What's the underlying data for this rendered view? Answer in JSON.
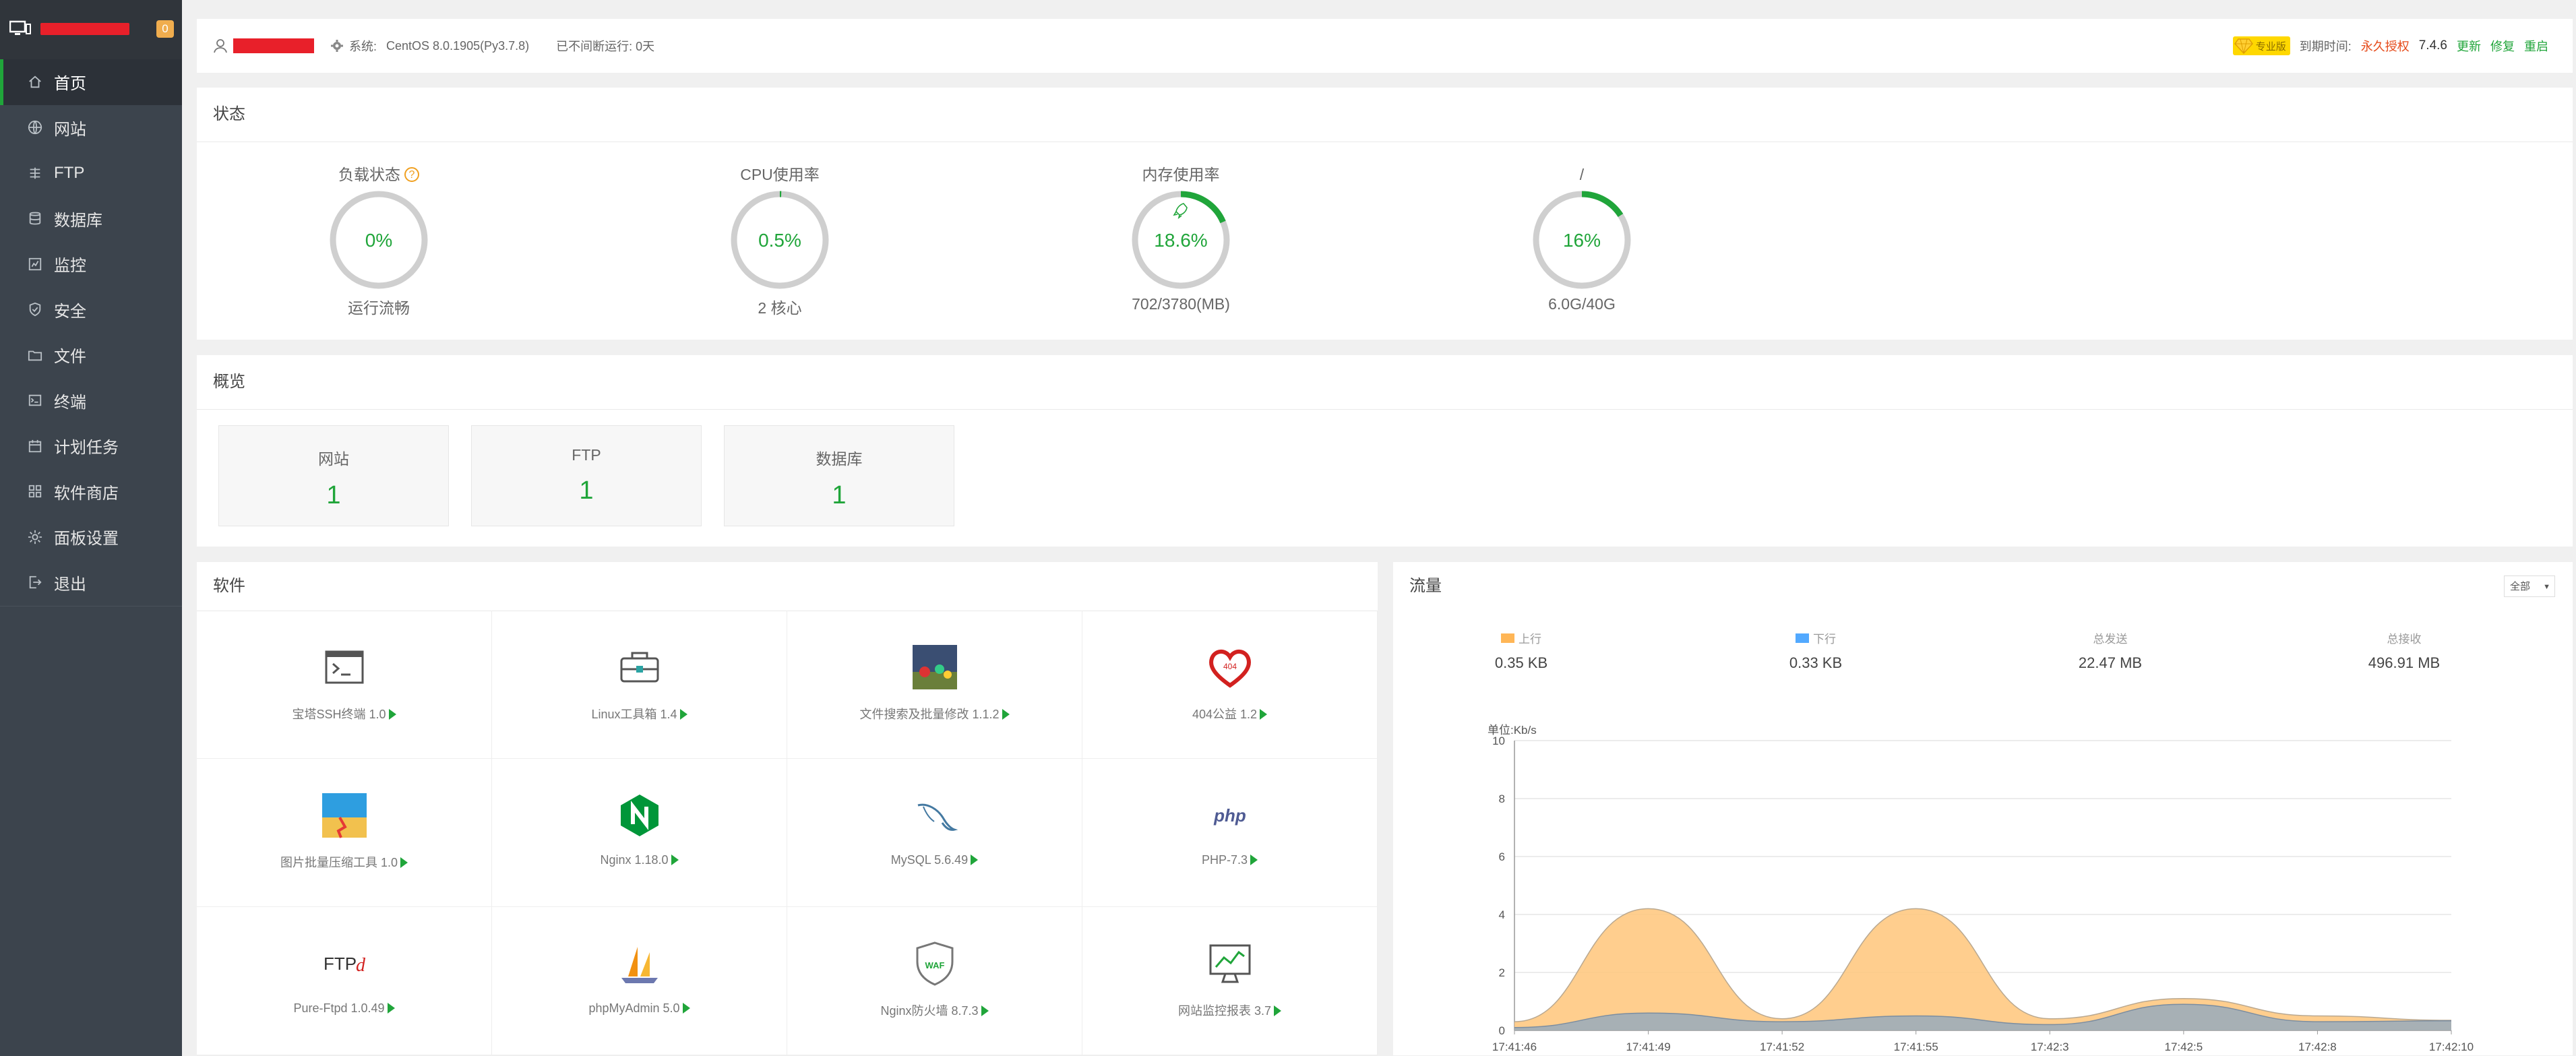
{
  "sidebar": {
    "brand_name": "redacted",
    "badge": "0",
    "items": [
      {
        "label": "首页",
        "icon": "home-icon",
        "active": true
      },
      {
        "label": "网站",
        "icon": "globe-icon"
      },
      {
        "label": "FTP",
        "icon": "ftp-icon"
      },
      {
        "label": "数据库",
        "icon": "database-icon"
      },
      {
        "label": "监控",
        "icon": "monitor-icon"
      },
      {
        "label": "安全",
        "icon": "shield-icon"
      },
      {
        "label": "文件",
        "icon": "folder-icon"
      },
      {
        "label": "终端",
        "icon": "terminal-icon"
      },
      {
        "label": "计划任务",
        "icon": "calendar-icon"
      },
      {
        "label": "软件商店",
        "icon": "grid-icon"
      },
      {
        "label": "面板设置",
        "icon": "gear-icon"
      },
      {
        "label": "退出",
        "icon": "logout-icon"
      }
    ]
  },
  "topbar": {
    "username": "redacted",
    "system_label": "系统:",
    "system_value": "CentOS 8.0.1905(Py3.7.8)",
    "uptime_label": "已不间断运行: 0天",
    "pro_label": "专业版",
    "expire_label": "到期时间:",
    "expire_value": "永久授权",
    "version": "7.4.6",
    "update": "更新",
    "repair": "修复",
    "restart": "重启"
  },
  "status": {
    "title": "状态",
    "gauges": [
      {
        "title": "负载状态",
        "value": "0%",
        "percent": 0,
        "sub": "运行流畅",
        "help": true
      },
      {
        "title": "CPU使用率",
        "value": "0.5%",
        "percent": 0.5,
        "sub": "2 核心"
      },
      {
        "title": "内存使用率",
        "value": "18.6%",
        "percent": 18.6,
        "sub": "702/3780(MB)",
        "rocket": true
      },
      {
        "title": "/",
        "value": "16%",
        "percent": 16,
        "sub": "6.0G/40G"
      }
    ]
  },
  "overview": {
    "title": "概览",
    "cards": [
      {
        "name": "网站",
        "count": "1"
      },
      {
        "name": "FTP",
        "count": "1"
      },
      {
        "name": "数据库",
        "count": "1"
      }
    ]
  },
  "software": {
    "title": "软件",
    "items": [
      {
        "label": "宝塔SSH终端 1.0",
        "icon": "terminal-app-icon"
      },
      {
        "label": "Linux工具箱 1.4",
        "icon": "toolbox-icon"
      },
      {
        "label": "文件搜索及批量修改 1.1.2",
        "icon": "file-search-icon"
      },
      {
        "label": "404公益 1.2",
        "icon": "heart-404-icon"
      },
      {
        "label": "图片批量压缩工具 1.0",
        "icon": "image-compress-icon"
      },
      {
        "label": "Nginx 1.18.0",
        "icon": "nginx-icon"
      },
      {
        "label": "MySQL 5.6.49",
        "icon": "mysql-icon"
      },
      {
        "label": "PHP-7.3",
        "icon": "php-icon"
      },
      {
        "label": "Pure-Ftpd 1.0.49",
        "icon": "ftpd-icon"
      },
      {
        "label": "phpMyAdmin 5.0",
        "icon": "phpmyadmin-icon"
      },
      {
        "label": "Nginx防火墙 8.7.3",
        "icon": "waf-icon"
      },
      {
        "label": "网站监控报表 3.7",
        "icon": "site-monitor-icon"
      }
    ]
  },
  "traffic": {
    "title": "流量",
    "select_value": "全部",
    "stats": [
      {
        "label": "上行",
        "value": "0.35 KB",
        "swatch": "#ffb656"
      },
      {
        "label": "下行",
        "value": "0.33 KB",
        "swatch": "#52a9ff"
      },
      {
        "label": "总发送",
        "value": "22.47 MB"
      },
      {
        "label": "总接收",
        "value": "496.91 MB"
      }
    ]
  },
  "chart_data": {
    "type": "area",
    "ylabel": "单位:Kb/s",
    "ylim": [
      0,
      10
    ],
    "yticks": [
      0,
      2,
      4,
      6,
      8,
      10
    ],
    "x": [
      "17:41:46",
      "17:41:49",
      "17:41:52",
      "17:41:55",
      "17:42:3",
      "17:42:5",
      "17:42:8",
      "17:42:10"
    ],
    "series": [
      {
        "name": "上行",
        "color": "#ffb656",
        "values": [
          0.3,
          4.2,
          0.4,
          4.2,
          0.4,
          1.1,
          0.5,
          0.35
        ]
      },
      {
        "name": "下行",
        "color": "#52a9ff",
        "values": [
          0.1,
          0.6,
          0.3,
          0.5,
          0.2,
          0.9,
          0.3,
          0.33
        ]
      }
    ],
    "grid": true
  },
  "colors": {
    "accent": "#20a53a",
    "sidebar": "#3c444d"
  }
}
